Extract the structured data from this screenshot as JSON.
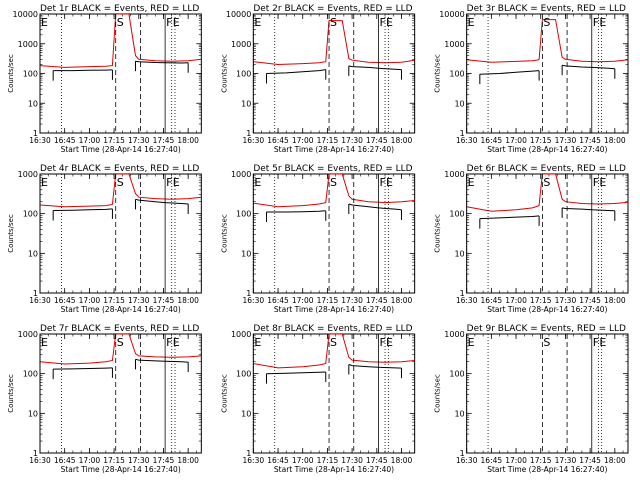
{
  "common": {
    "xlabel": "Start Time (28-Apr-14 16:27:40)",
    "ylabel": "Counts/sec",
    "x_ticks": [
      "16:30",
      "16:45",
      "17:00",
      "17:15",
      "17:30",
      "17:45",
      "18:00"
    ],
    "y_ticks": [
      "1",
      "10",
      "100",
      "1000",
      "10000"
    ],
    "marker_letters": [
      "E",
      "S",
      "F",
      "E"
    ],
    "series_colors": {
      "events": "#000000",
      "lld": "#e00000"
    }
  },
  "chart_data": [
    {
      "type": "line",
      "scale_y": "log",
      "ylim": [
        1,
        10000
      ],
      "xlim": [
        "16:30",
        "18:08"
      ],
      "title": "Det 1r BLACK = Events, RED = LLD",
      "markers": [
        {
          "label": "E",
          "x": "16:30",
          "style": "dotted"
        },
        {
          "label": "S",
          "x": "17:16",
          "style": "dashed"
        },
        {
          "label": "F",
          "x": "17:46",
          "style": "solid"
        },
        {
          "label": "E",
          "x": "17:50",
          "style": "dotted"
        }
      ],
      "series": [
        {
          "name": "BLACK = Events",
          "segments": [
            {
              "x": [
                "16:38",
                "16:50",
                "17:00",
                "17:10",
                "17:14"
              ],
              "y": [
                125,
                125,
                128,
                130,
                132
              ]
            },
            {
              "x": [
                "17:28",
                "17:30",
                "17:40",
                "17:46",
                "17:56",
                "18:00"
              ],
              "y": [
                260,
                250,
                235,
                230,
                225,
                230
              ]
            }
          ]
        },
        {
          "name": "RED = LLD",
          "segments": [
            {
              "x": [
                "16:30",
                "16:45",
                "17:00",
                "17:10",
                "17:14",
                "17:16",
                "17:20",
                "17:24",
                "17:28",
                "17:30",
                "17:40",
                "17:50",
                "18:00",
                "18:08"
              ],
              "y": [
                185,
                160,
                170,
                175,
                185,
                10000,
                10000,
                10000,
                400,
                300,
                270,
                260,
                270,
                300
              ]
            }
          ]
        }
      ]
    },
    {
      "type": "line",
      "scale_y": "log",
      "ylim": [
        1,
        10000
      ],
      "xlim": [
        "16:30",
        "18:08"
      ],
      "title": "Det 2r BLACK = Events, RED = LLD",
      "markers": [
        {
          "label": "E",
          "x": "16:30",
          "style": "dotted"
        },
        {
          "label": "S",
          "x": "17:16",
          "style": "dashed"
        },
        {
          "label": "F",
          "x": "17:46",
          "style": "solid"
        },
        {
          "label": "E",
          "x": "17:50",
          "style": "dotted"
        }
      ],
      "series": [
        {
          "name": "BLACK = Events",
          "segments": [
            {
              "x": [
                "16:38",
                "16:50",
                "17:00",
                "17:10",
                "17:14"
              ],
              "y": [
                100,
                105,
                115,
                125,
                135
              ]
            },
            {
              "x": [
                "17:28",
                "17:30",
                "17:40",
                "17:46",
                "17:56",
                "18:00"
              ],
              "y": [
                180,
                170,
                160,
                150,
                140,
                135
              ]
            }
          ]
        },
        {
          "name": "RED = LLD",
          "segments": [
            {
              "x": [
                "16:30",
                "16:45",
                "17:00",
                "17:10",
                "17:14",
                "17:16",
                "17:20",
                "17:24",
                "17:28",
                "17:30",
                "17:40",
                "17:50",
                "18:00",
                "18:08"
              ],
              "y": [
                250,
                200,
                215,
                230,
                250,
                6000,
                6000,
                6000,
                320,
                280,
                240,
                230,
                240,
                280
              ]
            }
          ]
        }
      ]
    },
    {
      "type": "line",
      "scale_y": "log",
      "ylim": [
        1,
        10000
      ],
      "xlim": [
        "16:30",
        "18:08"
      ],
      "title": "Det 3r BLACK = Events, RED = LLD",
      "markers": [
        {
          "label": "E",
          "x": "16:30",
          "style": "dotted"
        },
        {
          "label": "S",
          "x": "17:16",
          "style": "dashed"
        },
        {
          "label": "F",
          "x": "17:46",
          "style": "solid"
        },
        {
          "label": "E",
          "x": "17:50",
          "style": "dotted"
        }
      ],
      "series": [
        {
          "name": "BLACK = Events",
          "segments": [
            {
              "x": [
                "16:38",
                "16:50",
                "17:00",
                "17:10",
                "17:14"
              ],
              "y": [
                95,
                100,
                110,
                120,
                125
              ]
            },
            {
              "x": [
                "17:28",
                "17:30",
                "17:40",
                "17:46",
                "17:56",
                "18:00"
              ],
              "y": [
                190,
                180,
                165,
                160,
                150,
                145
              ]
            }
          ]
        },
        {
          "name": "RED = LLD",
          "segments": [
            {
              "x": [
                "16:30",
                "16:45",
                "17:00",
                "17:10",
                "17:14",
                "17:16",
                "17:20",
                "17:24",
                "17:28",
                "17:30",
                "17:40",
                "17:50",
                "18:00",
                "18:08"
              ],
              "y": [
                290,
                240,
                255,
                270,
                290,
                6500,
                6500,
                6500,
                350,
                300,
                260,
                250,
                260,
                290
              ]
            }
          ]
        }
      ]
    },
    {
      "type": "line",
      "scale_y": "log",
      "ylim": [
        1,
        1000
      ],
      "xlim": [
        "16:30",
        "18:08"
      ],
      "title": "Det 4r BLACK = Events, RED = LLD",
      "markers": [
        {
          "label": "E",
          "x": "16:30",
          "style": "dotted"
        },
        {
          "label": "S",
          "x": "17:16",
          "style": "dashed"
        },
        {
          "label": "F",
          "x": "17:46",
          "style": "solid"
        },
        {
          "label": "E",
          "x": "17:50",
          "style": "dotted"
        }
      ],
      "series": [
        {
          "name": "BLACK = Events",
          "segments": [
            {
              "x": [
                "16:38",
                "16:50",
                "17:00",
                "17:10",
                "17:14"
              ],
              "y": [
                120,
                122,
                125,
                128,
                132
              ]
            },
            {
              "x": [
                "17:28",
                "17:30",
                "17:40",
                "17:46",
                "17:56",
                "18:00"
              ],
              "y": [
                230,
                220,
                200,
                190,
                180,
                175
              ]
            }
          ]
        },
        {
          "name": "RED = LLD",
          "segments": [
            {
              "x": [
                "16:30",
                "16:45",
                "17:00",
                "17:10",
                "17:14",
                "17:16",
                "17:20",
                "17:24",
                "17:28",
                "17:30",
                "17:40",
                "17:50",
                "18:00",
                "18:08"
              ],
              "y": [
                165,
                150,
                155,
                160,
                170,
                1000,
                1000,
                1000,
                320,
                260,
                240,
                230,
                240,
                260
              ]
            }
          ]
        }
      ]
    },
    {
      "type": "line",
      "scale_y": "log",
      "ylim": [
        1,
        1000
      ],
      "xlim": [
        "16:30",
        "18:08"
      ],
      "title": "Det 5r BLACK = Events, RED = LLD",
      "markers": [
        {
          "label": "E",
          "x": "16:30",
          "style": "dotted"
        },
        {
          "label": "S",
          "x": "17:16",
          "style": "dashed"
        },
        {
          "label": "F",
          "x": "17:46",
          "style": "solid"
        },
        {
          "label": "E",
          "x": "17:50",
          "style": "dotted"
        }
      ],
      "series": [
        {
          "name": "BLACK = Events",
          "segments": [
            {
              "x": [
                "16:38",
                "16:50",
                "17:00",
                "17:10",
                "17:14"
              ],
              "y": [
                110,
                110,
                112,
                115,
                118
              ]
            },
            {
              "x": [
                "17:28",
                "17:30",
                "17:40",
                "17:46",
                "17:56",
                "18:00"
              ],
              "y": [
                175,
                165,
                150,
                140,
                130,
                125
              ]
            }
          ]
        },
        {
          "name": "RED = LLD",
          "segments": [
            {
              "x": [
                "16:30",
                "16:45",
                "17:00",
                "17:10",
                "17:14",
                "17:16",
                "17:20",
                "17:24",
                "17:28",
                "17:30",
                "17:40",
                "17:50",
                "18:00",
                "18:08"
              ],
              "y": [
                185,
                150,
                160,
                175,
                190,
                1000,
                1000,
                1000,
                280,
                230,
                200,
                190,
                200,
                215
              ]
            }
          ]
        }
      ]
    },
    {
      "type": "line",
      "scale_y": "log",
      "ylim": [
        1,
        1000
      ],
      "xlim": [
        "16:30",
        "18:08"
      ],
      "title": "Det 6r BLACK = Events, RED = LLD",
      "markers": [
        {
          "label": "E",
          "x": "16:30",
          "style": "dotted"
        },
        {
          "label": "S",
          "x": "17:16",
          "style": "dashed"
        },
        {
          "label": "F",
          "x": "17:46",
          "style": "solid"
        },
        {
          "label": "E",
          "x": "17:50",
          "style": "dotted"
        }
      ],
      "series": [
        {
          "name": "BLACK = Events",
          "segments": [
            {
              "x": [
                "16:38",
                "16:50",
                "17:00",
                "17:10",
                "17:14"
              ],
              "y": [
                75,
                78,
                82,
                85,
                88
              ]
            },
            {
              "x": [
                "17:28",
                "17:30",
                "17:40",
                "17:46",
                "17:56",
                "18:00"
              ],
              "y": [
                140,
                135,
                130,
                125,
                120,
                118
              ]
            }
          ]
        },
        {
          "name": "RED = LLD",
          "segments": [
            {
              "x": [
                "16:30",
                "16:45",
                "17:00",
                "17:10",
                "17:14",
                "17:16",
                "17:20",
                "17:24",
                "17:28",
                "17:30",
                "17:40",
                "17:50",
                "18:00",
                "18:08"
              ],
              "y": [
                150,
                115,
                125,
                140,
                160,
                1000,
                1000,
                1000,
                230,
                200,
                180,
                175,
                180,
                195
              ]
            }
          ]
        }
      ]
    },
    {
      "type": "line",
      "scale_y": "log",
      "ylim": [
        1,
        1000
      ],
      "xlim": [
        "16:30",
        "18:08"
      ],
      "title": "Det 7r BLACK = Events, RED = LLD",
      "markers": [
        {
          "label": "E",
          "x": "16:30",
          "style": "dotted"
        },
        {
          "label": "S",
          "x": "17:16",
          "style": "dashed"
        },
        {
          "label": "F",
          "x": "17:46",
          "style": "solid"
        },
        {
          "label": "E",
          "x": "17:50",
          "style": "dotted"
        }
      ],
      "series": [
        {
          "name": "BLACK = Events",
          "segments": [
            {
              "x": [
                "16:38",
                "16:50",
                "17:00",
                "17:10",
                "17:14"
              ],
              "y": [
                130,
                132,
                135,
                138,
                140
              ]
            },
            {
              "x": [
                "17:28",
                "17:30",
                "17:40",
                "17:46",
                "17:56",
                "18:00"
              ],
              "y": [
                230,
                220,
                210,
                205,
                200,
                195
              ]
            }
          ]
        },
        {
          "name": "RED = LLD",
          "segments": [
            {
              "x": [
                "16:30",
                "16:45",
                "17:00",
                "17:10",
                "17:14",
                "17:16",
                "17:20",
                "17:24",
                "17:28",
                "17:30",
                "17:40",
                "17:50",
                "18:00",
                "18:08"
              ],
              "y": [
                200,
                175,
                185,
                200,
                215,
                1000,
                1000,
                1000,
                320,
                280,
                265,
                260,
                265,
                280
              ]
            }
          ]
        }
      ]
    },
    {
      "type": "line",
      "scale_y": "log",
      "ylim": [
        1,
        1000
      ],
      "xlim": [
        "16:30",
        "18:08"
      ],
      "title": "Det 8r BLACK = Events, RED = LLD",
      "markers": [
        {
          "label": "E",
          "x": "16:30",
          "style": "dotted"
        },
        {
          "label": "S",
          "x": "17:16",
          "style": "dashed"
        },
        {
          "label": "F",
          "x": "17:46",
          "style": "solid"
        },
        {
          "label": "E",
          "x": "17:50",
          "style": "dotted"
        }
      ],
      "series": [
        {
          "name": "BLACK = Events",
          "segments": [
            {
              "x": [
                "16:38",
                "16:50",
                "17:00",
                "17:10",
                "17:14"
              ],
              "y": [
                100,
                102,
                105,
                108,
                110
              ]
            },
            {
              "x": [
                "17:28",
                "17:30",
                "17:40",
                "17:46",
                "17:56",
                "18:00"
              ],
              "y": [
                170,
                160,
                150,
                145,
                140,
                138
              ]
            }
          ]
        },
        {
          "name": "RED = LLD",
          "segments": [
            {
              "x": [
                "16:30",
                "16:45",
                "17:00",
                "17:10",
                "17:14",
                "17:16",
                "17:20",
                "17:24",
                "17:28",
                "17:30",
                "17:40",
                "17:50",
                "18:00",
                "18:08"
              ],
              "y": [
                180,
                140,
                150,
                165,
                180,
                1000,
                1000,
                1000,
                260,
                220,
                200,
                195,
                200,
                215
              ]
            }
          ]
        }
      ]
    },
    {
      "type": "line",
      "scale_y": "log",
      "ylim": [
        1,
        1000
      ],
      "xlim": [
        "16:30",
        "18:08"
      ],
      "title": "Det 9r BLACK = Events, RED = LLD",
      "markers": [
        {
          "label": "E",
          "x": "16:30",
          "style": "dotted"
        },
        {
          "label": "S",
          "x": "17:16",
          "style": "dashed"
        },
        {
          "label": "F",
          "x": "17:46",
          "style": "solid"
        },
        {
          "label": "E",
          "x": "17:50",
          "style": "dotted"
        }
      ],
      "series": []
    }
  ]
}
